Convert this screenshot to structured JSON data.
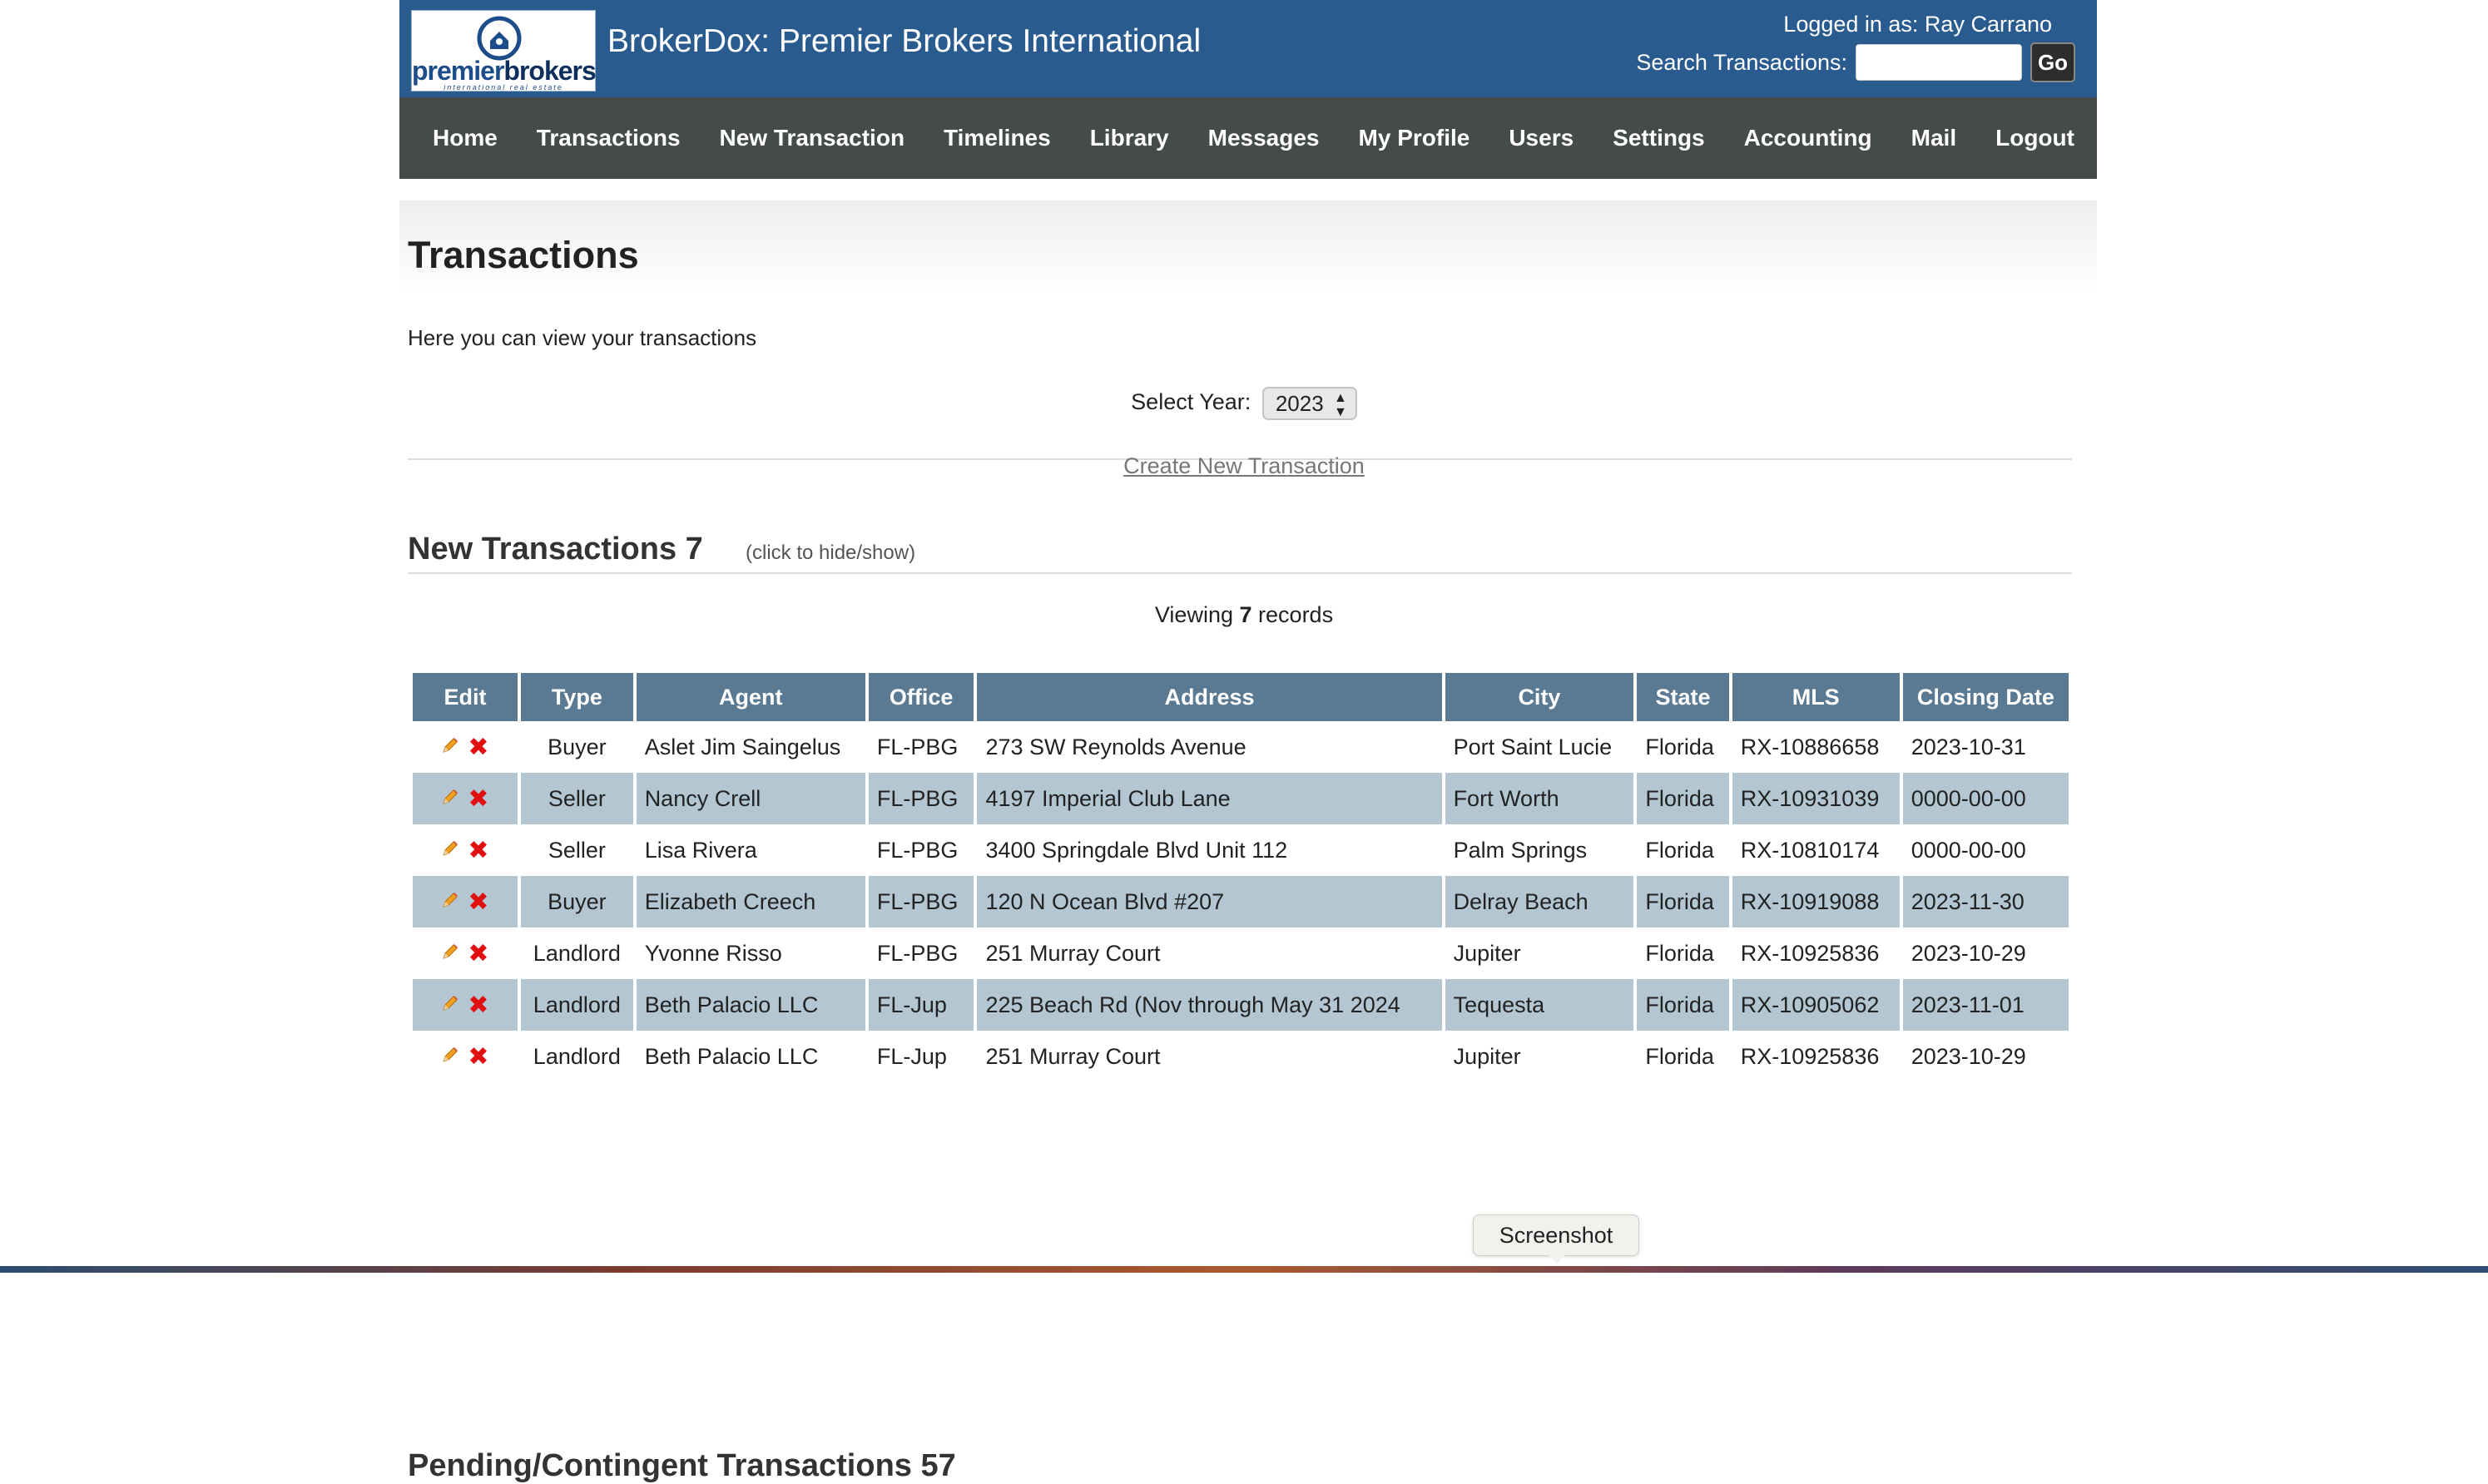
{
  "header": {
    "logo": {
      "word_part1": "premier",
      "word_part2": "brokers",
      "tagline": "international real estate"
    },
    "site_title": "BrokerDox: Premier Brokers International",
    "login_info": "Logged in as: Ray Carrano",
    "search_label": "Search Transactions:",
    "search_value": "",
    "go_label": "Go"
  },
  "nav": {
    "items": [
      "Home",
      "Transactions",
      "New Transaction",
      "Timelines",
      "Library",
      "Messages",
      "My Profile",
      "Users",
      "Settings",
      "Accounting",
      "Mail",
      "Logout"
    ]
  },
  "page": {
    "title": "Transactions",
    "intro": "Here you can view your transactions",
    "year_label": "Select Year:",
    "year_value": "2023",
    "create_link": "Create New Transaction"
  },
  "section": {
    "title": "New Transactions 7",
    "toggle": "(click to hide/show)",
    "viewing_prefix": "Viewing",
    "viewing_count": "7",
    "viewing_suffix": "records"
  },
  "table": {
    "headers": [
      "Edit",
      "Type",
      "Agent",
      "Office",
      "Address",
      "City",
      "State",
      "MLS",
      "Closing Date"
    ],
    "rows": [
      {
        "type": "Buyer",
        "agent": "Aslet Jim Saingelus",
        "office": "FL-PBG",
        "address": "273 SW Reynolds Avenue",
        "city": "Port Saint Lucie",
        "state": "Florida",
        "mls": "RX-10886658",
        "closing": "2023-10-31"
      },
      {
        "type": "Seller",
        "agent": "Nancy Crell",
        "office": "FL-PBG",
        "address": "4197 Imperial Club Lane",
        "city": "Fort Worth",
        "state": "Florida",
        "mls": "RX-10931039",
        "closing": "0000-00-00"
      },
      {
        "type": "Seller",
        "agent": "Lisa Rivera",
        "office": "FL-PBG",
        "address": "3400 Springdale Blvd Unit 112",
        "city": "Palm Springs",
        "state": "Florida",
        "mls": "RX-10810174",
        "closing": "0000-00-00"
      },
      {
        "type": "Buyer",
        "agent": "Elizabeth Creech",
        "office": "FL-PBG",
        "address": "120 N Ocean Blvd #207",
        "city": "Delray Beach",
        "state": "Florida",
        "mls": "RX-10919088",
        "closing": "2023-11-30"
      },
      {
        "type": "Landlord",
        "agent": "Yvonne Risso",
        "office": "FL-PBG",
        "address": "251 Murray Court",
        "city": "Jupiter",
        "state": "Florida",
        "mls": "RX-10925836",
        "closing": "2023-10-29"
      },
      {
        "type": "Landlord",
        "agent": "Beth Palacio LLC",
        "office": "FL-Jup",
        "address": "225 Beach Rd (Nov through May 31 2024",
        "city": "Tequesta",
        "state": "Florida",
        "mls": "RX-10905062",
        "closing": "2023-11-01"
      },
      {
        "type": "Landlord",
        "agent": "Beth Palacio LLC",
        "office": "FL-Jup",
        "address": "251 Murray Court",
        "city": "Jupiter",
        "state": "Florida",
        "mls": "RX-10925836",
        "closing": "2023-10-29"
      }
    ]
  },
  "next_section": {
    "title": "Pending/Contingent Transactions 57"
  },
  "tooltip": {
    "label": "Screenshot"
  },
  "colors": {
    "header_bg": "#2a5b8f",
    "nav_bg": "#454b47",
    "table_header_bg": "#5a7a94",
    "row_alt_bg": "#b3c6d2",
    "delete_red": "#e01010"
  },
  "icons": {
    "edit": "pencil-icon",
    "delete": "delete-x-icon"
  }
}
